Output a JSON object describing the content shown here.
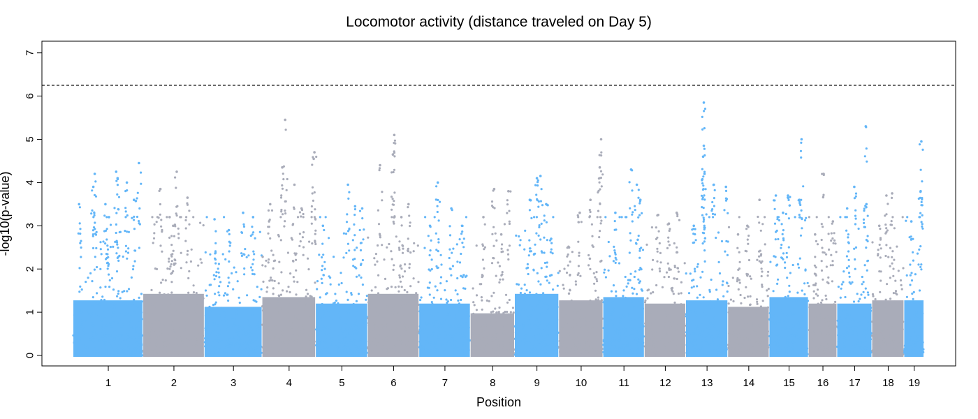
{
  "chart_data": {
    "type": "scatter",
    "subtype": "manhattan",
    "title": "Locomotor activity (distance traveled on Day 5)",
    "xlabel": "Position",
    "ylabel": "-log10(p-value)",
    "ylim": [
      0,
      7
    ],
    "yticks": [
      0,
      1,
      2,
      3,
      4,
      5,
      6,
      7
    ],
    "threshold": 6.25,
    "threshold_style": "dashed",
    "grid": false,
    "legend": "none",
    "colors": {
      "odd": "#63b6f8",
      "even": "#a9acb9"
    },
    "chromosomes": [
      {
        "label": "1",
        "start": 0,
        "end": 98,
        "typical_max": 1.7,
        "peaks": [
          {
            "pos": 30,
            "y": 4.2
          },
          {
            "pos": 28,
            "y": 3.9
          },
          {
            "pos": 60,
            "y": 4.25
          },
          {
            "pos": 62,
            "y": 4.1
          },
          {
            "pos": 75,
            "y": 4.0
          },
          {
            "pos": 92,
            "y": 4.45
          },
          {
            "pos": 45,
            "y": 3.5
          },
          {
            "pos": 8,
            "y": 3.5
          },
          {
            "pos": 85,
            "y": 3.6
          },
          {
            "pos": 50,
            "y": 3.2
          }
        ]
      },
      {
        "label": "2",
        "start": 98,
        "end": 184,
        "typical_max": 1.9,
        "peaks": [
          {
            "pos": 145,
            "y": 4.25
          },
          {
            "pos": 122,
            "y": 3.85
          },
          {
            "pos": 160,
            "y": 3.65
          },
          {
            "pos": 140,
            "y": 3.0
          },
          {
            "pos": 135,
            "y": 3.2
          }
        ]
      },
      {
        "label": "3",
        "start": 184,
        "end": 265,
        "typical_max": 1.5,
        "peaks": [
          {
            "pos": 198,
            "y": 3.15
          },
          {
            "pos": 238,
            "y": 3.3
          },
          {
            "pos": 218,
            "y": 2.9
          },
          {
            "pos": 252,
            "y": 3.2
          }
        ]
      },
      {
        "label": "4",
        "start": 265,
        "end": 340,
        "typical_max": 1.8,
        "peaks": [
          {
            "pos": 297,
            "y": 5.45
          },
          {
            "pos": 293,
            "y": 4.35
          },
          {
            "pos": 338,
            "y": 4.7
          },
          {
            "pos": 337,
            "y": 4.55
          },
          {
            "pos": 310,
            "y": 3.95
          },
          {
            "pos": 276,
            "y": 3.5
          },
          {
            "pos": 320,
            "y": 3.4
          }
        ]
      },
      {
        "label": "5",
        "start": 340,
        "end": 413,
        "typical_max": 1.6,
        "peaks": [
          {
            "pos": 385,
            "y": 3.95
          },
          {
            "pos": 395,
            "y": 3.45
          },
          {
            "pos": 405,
            "y": 3.4
          },
          {
            "pos": 350,
            "y": 3.0
          }
        ]
      },
      {
        "label": "6",
        "start": 413,
        "end": 485,
        "typical_max": 1.9,
        "peaks": [
          {
            "pos": 450,
            "y": 5.1
          },
          {
            "pos": 448,
            "y": 4.65
          },
          {
            "pos": 430,
            "y": 4.4
          },
          {
            "pos": 470,
            "y": 3.5
          },
          {
            "pos": 460,
            "y": 3.2
          }
        ]
      },
      {
        "label": "7",
        "start": 485,
        "end": 557,
        "typical_max": 1.6,
        "peaks": [
          {
            "pos": 511,
            "y": 4.0
          },
          {
            "pos": 530,
            "y": 3.4
          },
          {
            "pos": 545,
            "y": 3.0
          },
          {
            "pos": 500,
            "y": 3.0
          }
        ]
      },
      {
        "label": "8",
        "start": 557,
        "end": 619,
        "typical_max": 1.3,
        "peaks": [
          {
            "pos": 590,
            "y": 3.85
          },
          {
            "pos": 610,
            "y": 3.8
          },
          {
            "pos": 575,
            "y": 3.2
          },
          {
            "pos": 600,
            "y": 2.8
          }
        ]
      },
      {
        "label": "9",
        "start": 619,
        "end": 681,
        "typical_max": 1.9,
        "peaks": [
          {
            "pos": 655,
            "y": 4.15
          },
          {
            "pos": 650,
            "y": 4.1
          },
          {
            "pos": 663,
            "y": 3.5
          },
          {
            "pos": 640,
            "y": 3.6
          },
          {
            "pos": 670,
            "y": 2.7
          }
        ]
      },
      {
        "label": "10",
        "start": 681,
        "end": 743,
        "typical_max": 1.7,
        "peaks": [
          {
            "pos": 740,
            "y": 5.0
          },
          {
            "pos": 738,
            "y": 4.35
          },
          {
            "pos": 710,
            "y": 3.3
          },
          {
            "pos": 725,
            "y": 3.6
          },
          {
            "pos": 695,
            "y": 2.5
          }
        ]
      },
      {
        "label": "11",
        "start": 743,
        "end": 801,
        "typical_max": 1.8,
        "peaks": [
          {
            "pos": 782,
            "y": 4.3
          },
          {
            "pos": 790,
            "y": 3.95
          },
          {
            "pos": 760,
            "y": 3.3
          },
          {
            "pos": 795,
            "y": 3.6
          }
        ]
      },
      {
        "label": "12",
        "start": 801,
        "end": 859,
        "typical_max": 1.6,
        "peaks": [
          {
            "pos": 846,
            "y": 3.3
          },
          {
            "pos": 820,
            "y": 3.25
          },
          {
            "pos": 835,
            "y": 3.05
          }
        ]
      },
      {
        "label": "13",
        "start": 859,
        "end": 918,
        "typical_max": 1.7,
        "peaks": [
          {
            "pos": 884,
            "y": 5.85
          },
          {
            "pos": 884,
            "y": 4.85
          },
          {
            "pos": 883,
            "y": 4.6
          },
          {
            "pos": 885,
            "y": 4.2
          },
          {
            "pos": 915,
            "y": 3.9
          },
          {
            "pos": 898,
            "y": 3.95
          },
          {
            "pos": 870,
            "y": 3.0
          }
        ]
      },
      {
        "label": "14",
        "start": 918,
        "end": 976,
        "typical_max": 1.5,
        "peaks": [
          {
            "pos": 962,
            "y": 3.6
          },
          {
            "pos": 945,
            "y": 3.0
          },
          {
            "pos": 932,
            "y": 2.8
          }
        ]
      },
      {
        "label": "15",
        "start": 976,
        "end": 1031,
        "typical_max": 1.8,
        "peaks": [
          {
            "pos": 1021,
            "y": 5.0
          },
          {
            "pos": 985,
            "y": 3.7
          },
          {
            "pos": 1002,
            "y": 3.7
          },
          {
            "pos": 1018,
            "y": 3.6
          },
          {
            "pos": 995,
            "y": 3.3
          }
        ]
      },
      {
        "label": "16",
        "start": 1031,
        "end": 1071,
        "typical_max": 1.6,
        "peaks": [
          {
            "pos": 1052,
            "y": 4.2
          },
          {
            "pos": 1065,
            "y": 3.1
          },
          {
            "pos": 1040,
            "y": 2.8
          }
        ]
      },
      {
        "label": "17",
        "start": 1071,
        "end": 1120,
        "typical_max": 1.6,
        "peaks": [
          {
            "pos": 1111,
            "y": 5.3
          },
          {
            "pos": 1095,
            "y": 3.9
          },
          {
            "pos": 1112,
            "y": 3.5
          },
          {
            "pos": 1085,
            "y": 3.4
          }
        ]
      },
      {
        "label": "18",
        "start": 1120,
        "end": 1165,
        "typical_max": 1.7,
        "peaks": [
          {
            "pos": 1148,
            "y": 3.75
          },
          {
            "pos": 1140,
            "y": 3.7
          },
          {
            "pos": 1130,
            "y": 3.0
          }
        ]
      },
      {
        "label": "19",
        "start": 1165,
        "end": 1193,
        "typical_max": 1.7,
        "peaks": [
          {
            "pos": 1189,
            "y": 4.95
          },
          {
            "pos": 1188,
            "y": 3.8
          },
          {
            "pos": 1175,
            "y": 3.1
          }
        ]
      }
    ]
  }
}
